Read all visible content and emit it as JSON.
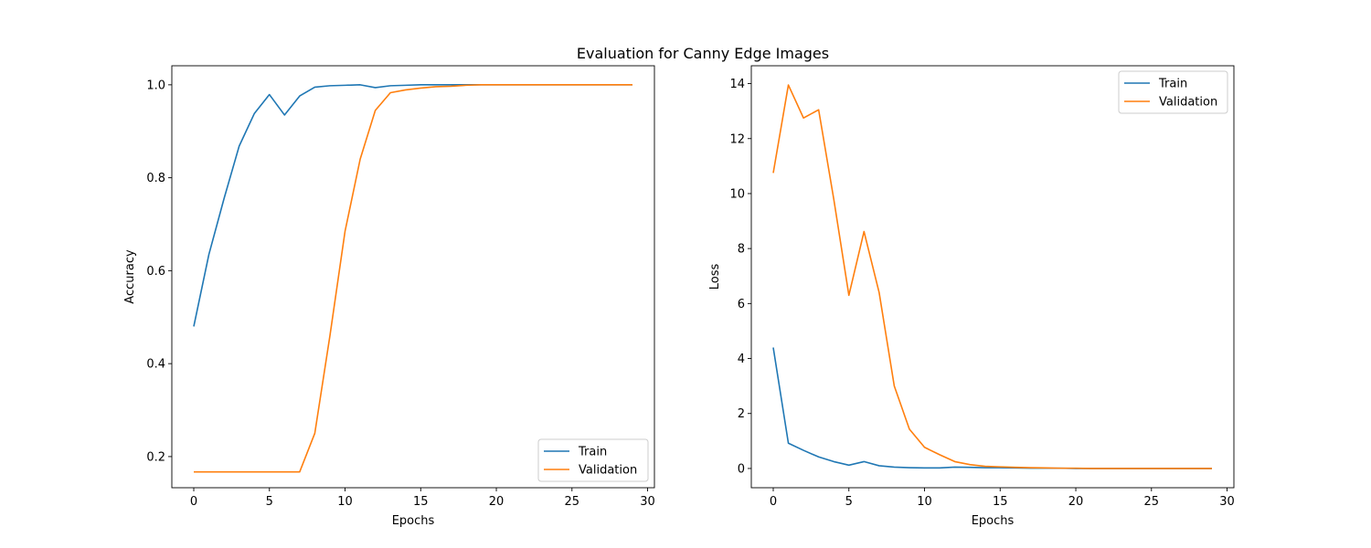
{
  "figure": {
    "title": "Evaluation for Canny Edge Images"
  },
  "colors": {
    "train": "#1f77b4",
    "validation": "#ff7f0e"
  },
  "chart_data": [
    {
      "type": "line",
      "title": "",
      "xlabel": "Epochs",
      "ylabel": "Accuracy",
      "xlim": [
        -1.45,
        30.45
      ],
      "ylim": [
        0.133,
        1.041
      ],
      "xticks": [
        0,
        5,
        10,
        15,
        20,
        25,
        30
      ],
      "xtick_labels": [
        "0",
        "5",
        "10",
        "15",
        "20",
        "25",
        "30"
      ],
      "yticks": [
        0.2,
        0.4,
        0.6,
        0.8,
        1.0
      ],
      "ytick_labels": [
        "0.2",
        "0.4",
        "0.6",
        "0.8",
        "1.0"
      ],
      "grid": false,
      "legend": {
        "position": "lower-right"
      },
      "x": [
        0,
        1,
        2,
        3,
        4,
        5,
        6,
        7,
        8,
        9,
        10,
        11,
        12,
        13,
        14,
        15,
        16,
        17,
        18,
        19,
        20,
        21,
        22,
        23,
        24,
        25,
        26,
        27,
        28,
        29
      ],
      "series": [
        {
          "name": "Train",
          "values": [
            0.48,
            0.635,
            0.755,
            0.868,
            0.938,
            0.979,
            0.935,
            0.976,
            0.995,
            0.998,
            0.999,
            1.0,
            0.994,
            0.998,
            0.999,
            1.0,
            1.0,
            1.0,
            1.0,
            1.0,
            1.0,
            1.0,
            1.0,
            1.0,
            1.0,
            1.0,
            1.0,
            1.0,
            1.0,
            1.0
          ]
        },
        {
          "name": "Validation",
          "values": [
            0.167,
            0.167,
            0.167,
            0.167,
            0.167,
            0.167,
            0.167,
            0.167,
            0.25,
            0.46,
            0.685,
            0.84,
            0.945,
            0.983,
            0.989,
            0.993,
            0.996,
            0.997,
            0.999,
            1.0,
            1.0,
            1.0,
            1.0,
            1.0,
            1.0,
            1.0,
            1.0,
            1.0,
            1.0,
            1.0
          ]
        }
      ]
    },
    {
      "type": "line",
      "title": "",
      "xlabel": "Epochs",
      "ylabel": "Loss",
      "xlim": [
        -1.45,
        30.45
      ],
      "ylim": [
        -0.7,
        14.65
      ],
      "xticks": [
        0,
        5,
        10,
        15,
        20,
        25,
        30
      ],
      "xtick_labels": [
        "0",
        "5",
        "10",
        "15",
        "20",
        "25",
        "30"
      ],
      "yticks": [
        0,
        2,
        4,
        6,
        8,
        10,
        12,
        14
      ],
      "ytick_labels": [
        "0",
        "2",
        "4",
        "6",
        "8",
        "10",
        "12",
        "14"
      ],
      "grid": false,
      "legend": {
        "position": "upper-right"
      },
      "x": [
        0,
        1,
        2,
        3,
        4,
        5,
        6,
        7,
        8,
        9,
        10,
        11,
        12,
        13,
        14,
        15,
        16,
        17,
        18,
        19,
        20,
        21,
        22,
        23,
        24,
        25,
        26,
        27,
        28,
        29
      ],
      "series": [
        {
          "name": "Train",
          "values": [
            4.4,
            0.92,
            0.66,
            0.42,
            0.25,
            0.12,
            0.25,
            0.1,
            0.05,
            0.03,
            0.02,
            0.02,
            0.05,
            0.04,
            0.03,
            0.03,
            0.02,
            0.01,
            0.01,
            0.01,
            0.0,
            0.0,
            0.0,
            0.0,
            0.0,
            0.0,
            0.0,
            0.0,
            0.0,
            0.0
          ]
        },
        {
          "name": "Validation",
          "values": [
            10.75,
            13.95,
            12.75,
            13.05,
            9.8,
            6.3,
            8.62,
            6.4,
            3.0,
            1.43,
            0.77,
            0.5,
            0.25,
            0.14,
            0.08,
            0.06,
            0.04,
            0.03,
            0.02,
            0.01,
            0.01,
            0.0,
            0.0,
            0.0,
            0.0,
            0.0,
            0.0,
            0.0,
            0.0,
            0.0
          ]
        }
      ]
    }
  ]
}
